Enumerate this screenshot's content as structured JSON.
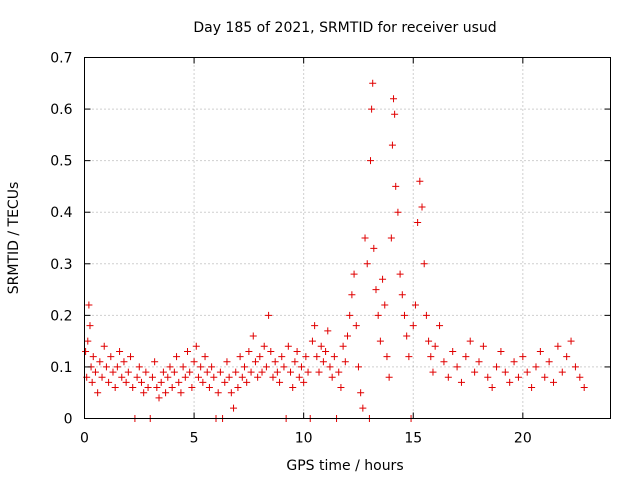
{
  "chart_data": {
    "type": "scatter",
    "title": "Day 185 of 2021, SRMTID for receiver usud",
    "xlabel": "GPS time / hours",
    "ylabel": "SRMTID / TECUs",
    "xlim": [
      0,
      24
    ],
    "ylim": [
      0,
      0.7
    ],
    "x_ticks": [
      0,
      5,
      10,
      15,
      20
    ],
    "x_tick_labels": [
      "0",
      "5",
      "10",
      "15",
      "20"
    ],
    "y_ticks": [
      0,
      0.1,
      0.2,
      0.3,
      0.4,
      0.5,
      0.6,
      0.7
    ],
    "y_tick_labels": [
      "0",
      "0.1",
      "0.2",
      "0.3",
      "0.4",
      "0.5",
      "0.6",
      "0.7"
    ],
    "grid": true,
    "marker": "+",
    "marker_color": "#e00000",
    "series": [
      {
        "name": "SRMTID",
        "points": [
          [
            0.05,
            0.13
          ],
          [
            0.1,
            0.08
          ],
          [
            0.15,
            0.15
          ],
          [
            0.2,
            0.22
          ],
          [
            0.25,
            0.18
          ],
          [
            0.3,
            0.1
          ],
          [
            0.35,
            0.07
          ],
          [
            0.4,
            0.12
          ],
          [
            0.5,
            0.09
          ],
          [
            0.6,
            0.05
          ],
          [
            0.7,
            0.11
          ],
          [
            0.8,
            0.08
          ],
          [
            0.9,
            0.14
          ],
          [
            1.0,
            0.1
          ],
          [
            1.1,
            0.07
          ],
          [
            1.2,
            0.12
          ],
          [
            1.3,
            0.09
          ],
          [
            1.4,
            0.06
          ],
          [
            1.5,
            0.1
          ],
          [
            1.6,
            0.13
          ],
          [
            1.7,
            0.08
          ],
          [
            1.8,
            0.11
          ],
          [
            1.9,
            0.07
          ],
          [
            2.0,
            0.09
          ],
          [
            2.1,
            0.12
          ],
          [
            2.2,
            0.06
          ],
          [
            2.3,
            0.0
          ],
          [
            2.4,
            0.08
          ],
          [
            2.5,
            0.1
          ],
          [
            2.6,
            0.07
          ],
          [
            2.7,
            0.05
          ],
          [
            2.8,
            0.09
          ],
          [
            2.9,
            0.06
          ],
          [
            3.0,
            0.0
          ],
          [
            3.1,
            0.08
          ],
          [
            3.2,
            0.11
          ],
          [
            3.3,
            0.06
          ],
          [
            3.4,
            0.04
          ],
          [
            3.5,
            0.07
          ],
          [
            3.6,
            0.09
          ],
          [
            3.7,
            0.05
          ],
          [
            3.8,
            0.08
          ],
          [
            3.9,
            0.1
          ],
          [
            4.0,
            0.06
          ],
          [
            4.1,
            0.09
          ],
          [
            4.2,
            0.12
          ],
          [
            4.3,
            0.07
          ],
          [
            4.4,
            0.05
          ],
          [
            4.5,
            0.1
          ],
          [
            4.6,
            0.08
          ],
          [
            4.7,
            0.13
          ],
          [
            4.8,
            0.09
          ],
          [
            4.9,
            0.06
          ],
          [
            5.0,
            0.11
          ],
          [
            5.1,
            0.14
          ],
          [
            5.2,
            0.08
          ],
          [
            5.3,
            0.1
          ],
          [
            5.4,
            0.07
          ],
          [
            5.5,
            0.12
          ],
          [
            5.6,
            0.09
          ],
          [
            5.7,
            0.06
          ],
          [
            5.8,
            0.1
          ],
          [
            5.9,
            0.08
          ],
          [
            6.0,
            0.0
          ],
          [
            6.1,
            0.05
          ],
          [
            6.2,
            0.09
          ],
          [
            6.3,
            0.0
          ],
          [
            6.4,
            0.07
          ],
          [
            6.5,
            0.11
          ],
          [
            6.6,
            0.08
          ],
          [
            6.7,
            0.05
          ],
          [
            6.8,
            0.02
          ],
          [
            6.9,
            0.09
          ],
          [
            7.0,
            0.06
          ],
          [
            7.1,
            0.12
          ],
          [
            7.2,
            0.08
          ],
          [
            7.3,
            0.1
          ],
          [
            7.4,
            0.07
          ],
          [
            7.5,
            0.13
          ],
          [
            7.6,
            0.09
          ],
          [
            7.7,
            0.16
          ],
          [
            7.8,
            0.11
          ],
          [
            7.9,
            0.08
          ],
          [
            8.0,
            0.12
          ],
          [
            8.1,
            0.09
          ],
          [
            8.2,
            0.14
          ],
          [
            8.3,
            0.1
          ],
          [
            8.4,
            0.2
          ],
          [
            8.5,
            0.13
          ],
          [
            8.6,
            0.08
          ],
          [
            8.7,
            0.11
          ],
          [
            8.8,
            0.09
          ],
          [
            8.9,
            0.07
          ],
          [
            9.0,
            0.12
          ],
          [
            9.1,
            0.1
          ],
          [
            9.2,
            0.0
          ],
          [
            9.3,
            0.14
          ],
          [
            9.4,
            0.09
          ],
          [
            9.5,
            0.06
          ],
          [
            9.6,
            0.11
          ],
          [
            9.7,
            0.13
          ],
          [
            9.8,
            0.08
          ],
          [
            9.9,
            0.1
          ],
          [
            10.0,
            0.07
          ],
          [
            10.1,
            0.12
          ],
          [
            10.2,
            0.09
          ],
          [
            10.3,
            0.0
          ],
          [
            10.4,
            0.15
          ],
          [
            10.5,
            0.18
          ],
          [
            10.6,
            0.12
          ],
          [
            10.7,
            0.09
          ],
          [
            10.8,
            0.14
          ],
          [
            10.9,
            0.11
          ],
          [
            11.0,
            0.13
          ],
          [
            11.1,
            0.17
          ],
          [
            11.2,
            0.1
          ],
          [
            11.3,
            0.08
          ],
          [
            11.4,
            0.12
          ],
          [
            11.5,
            0.0
          ],
          [
            11.6,
            0.09
          ],
          [
            11.7,
            0.06
          ],
          [
            11.8,
            0.14
          ],
          [
            11.9,
            0.11
          ],
          [
            12.0,
            0.16
          ],
          [
            12.1,
            0.2
          ],
          [
            12.2,
            0.24
          ],
          [
            12.3,
            0.28
          ],
          [
            12.4,
            0.18
          ],
          [
            12.5,
            0.1
          ],
          [
            12.6,
            0.05
          ],
          [
            12.7,
            0.02
          ],
          [
            12.8,
            0.35
          ],
          [
            12.9,
            0.3
          ],
          [
            13.0,
            0.0
          ],
          [
            13.05,
            0.5
          ],
          [
            13.1,
            0.6
          ],
          [
            13.15,
            0.65
          ],
          [
            13.2,
            0.33
          ],
          [
            13.3,
            0.25
          ],
          [
            13.4,
            0.2
          ],
          [
            13.5,
            0.15
          ],
          [
            13.6,
            0.27
          ],
          [
            13.7,
            0.22
          ],
          [
            13.8,
            0.12
          ],
          [
            13.9,
            0.08
          ],
          [
            14.0,
            0.35
          ],
          [
            14.05,
            0.53
          ],
          [
            14.1,
            0.62
          ],
          [
            14.15,
            0.59
          ],
          [
            14.2,
            0.45
          ],
          [
            14.3,
            0.4
          ],
          [
            14.4,
            0.28
          ],
          [
            14.5,
            0.24
          ],
          [
            14.6,
            0.2
          ],
          [
            14.7,
            0.16
          ],
          [
            14.8,
            0.12
          ],
          [
            14.9,
            0.0
          ],
          [
            15.0,
            0.18
          ],
          [
            15.1,
            0.22
          ],
          [
            15.2,
            0.38
          ],
          [
            15.3,
            0.46
          ],
          [
            15.4,
            0.41
          ],
          [
            15.5,
            0.3
          ],
          [
            15.6,
            0.2
          ],
          [
            15.7,
            0.15
          ],
          [
            15.8,
            0.12
          ],
          [
            15.9,
            0.09
          ],
          [
            16.0,
            0.14
          ],
          [
            16.2,
            0.18
          ],
          [
            16.4,
            0.11
          ],
          [
            16.6,
            0.08
          ],
          [
            16.8,
            0.13
          ],
          [
            17.0,
            0.1
          ],
          [
            17.2,
            0.07
          ],
          [
            17.4,
            0.12
          ],
          [
            17.6,
            0.15
          ],
          [
            17.8,
            0.09
          ],
          [
            18.0,
            0.11
          ],
          [
            18.2,
            0.14
          ],
          [
            18.4,
            0.08
          ],
          [
            18.6,
            0.06
          ],
          [
            18.8,
            0.1
          ],
          [
            19.0,
            0.13
          ],
          [
            19.2,
            0.09
          ],
          [
            19.4,
            0.07
          ],
          [
            19.6,
            0.11
          ],
          [
            19.8,
            0.08
          ],
          [
            20.0,
            0.12
          ],
          [
            20.2,
            0.09
          ],
          [
            20.4,
            0.06
          ],
          [
            20.6,
            0.1
          ],
          [
            20.8,
            0.13
          ],
          [
            21.0,
            0.08
          ],
          [
            21.2,
            0.11
          ],
          [
            21.4,
            0.07
          ],
          [
            21.6,
            0.14
          ],
          [
            21.8,
            0.09
          ],
          [
            22.0,
            0.12
          ],
          [
            22.2,
            0.15
          ],
          [
            22.4,
            0.1
          ],
          [
            22.6,
            0.08
          ],
          [
            22.8,
            0.06
          ]
        ]
      }
    ]
  }
}
